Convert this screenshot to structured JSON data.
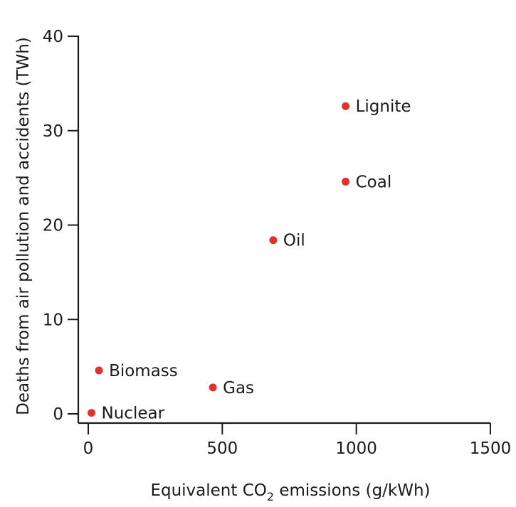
{
  "chart_data": {
    "type": "scatter",
    "title": "",
    "xlabel_parts": [
      "Equivalent CO",
      "2",
      " emissions (g/kWh)"
    ],
    "ylabel": "Deaths from air pollution and accidents (TWh)",
    "xlim": [
      0,
      1500
    ],
    "ylim": [
      0,
      40
    ],
    "xticks": [
      0,
      500,
      1000,
      1500
    ],
    "yticks": [
      0,
      10,
      20,
      30,
      40
    ],
    "grid": false,
    "point_color": "#e0322b",
    "points": [
      {
        "label": "Nuclear",
        "x": 12,
        "y": 0.1
      },
      {
        "label": "Biomass",
        "x": 40,
        "y": 4.6
      },
      {
        "label": "Gas",
        "x": 465,
        "y": 2.8
      },
      {
        "label": "Oil",
        "x": 690,
        "y": 18.4
      },
      {
        "label": "Coal",
        "x": 960,
        "y": 24.6
      },
      {
        "label": "Lignite",
        "x": 960,
        "y": 32.6
      }
    ]
  }
}
